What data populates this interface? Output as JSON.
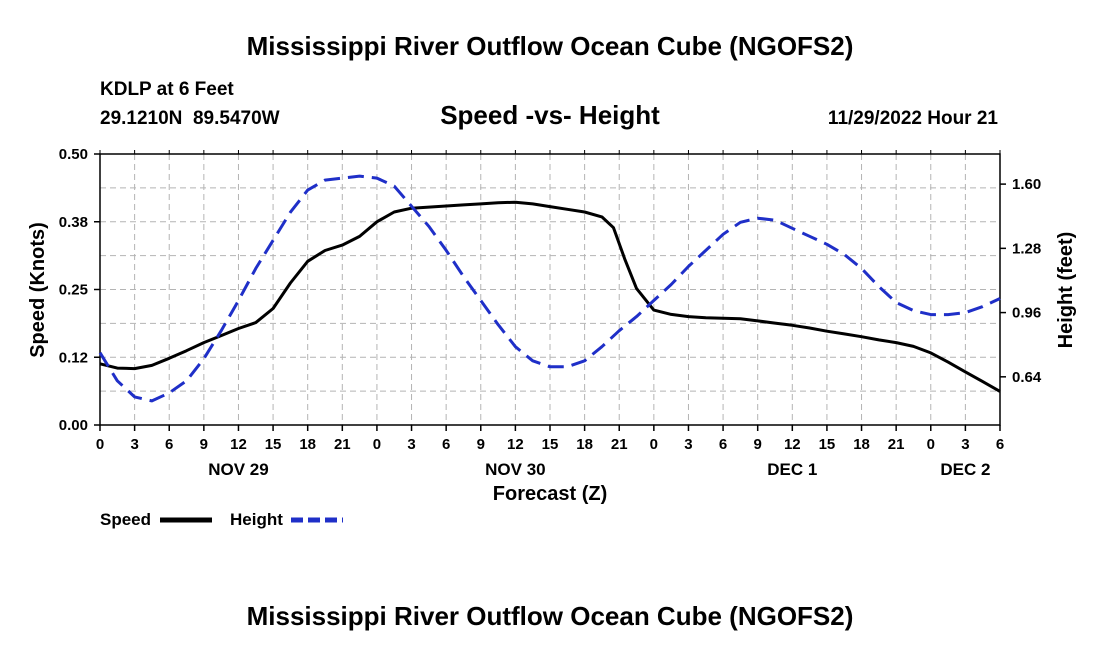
{
  "header": {
    "title": "Mississippi River Outflow Ocean Cube (NGOFS2)",
    "station_line": "KDLP at 6 Feet",
    "coords": "29.1210N  89.5470W",
    "subtitle": "Speed -vs- Height",
    "datetime": "11/29/2022 Hour 21"
  },
  "footer": {
    "title": "Mississippi River Outflow Ocean Cube (NGOFS2)"
  },
  "colors": {
    "speed": "#000000",
    "height": "#1f2fc8",
    "grid": "#b4b4b4"
  },
  "chart_data": {
    "type": "line",
    "title": "Speed -vs- Height",
    "xlabel": "Forecast (Z)",
    "ylabel": "Speed (Knots)",
    "y2label": "Height (feet)",
    "x_unit": "hours from Nov 29 00Z",
    "xlim": [
      0,
      78
    ],
    "ylim": [
      0,
      0.5
    ],
    "y2lim": [
      0.4,
      1.75
    ],
    "yticks": [
      {
        "value": 0.0,
        "label": "0.00"
      },
      {
        "value": 0.125,
        "label": "0.12"
      },
      {
        "value": 0.25,
        "label": "0.25"
      },
      {
        "value": 0.375,
        "label": "0.38"
      },
      {
        "value": 0.5,
        "label": "0.50"
      }
    ],
    "y2ticks": [
      {
        "value": 0.64,
        "label": "0.64"
      },
      {
        "value": 0.96,
        "label": "0.96"
      },
      {
        "value": 1.28,
        "label": "1.28"
      },
      {
        "value": 1.6,
        "label": "1.60"
      }
    ],
    "xticks": [
      {
        "value": 0,
        "label": "0"
      },
      {
        "value": 3,
        "label": "3"
      },
      {
        "value": 6,
        "label": "6"
      },
      {
        "value": 9,
        "label": "9"
      },
      {
        "value": 12,
        "label": "12"
      },
      {
        "value": 15,
        "label": "15"
      },
      {
        "value": 18,
        "label": "18"
      },
      {
        "value": 21,
        "label": "21"
      },
      {
        "value": 24,
        "label": "0"
      },
      {
        "value": 27,
        "label": "3"
      },
      {
        "value": 30,
        "label": "6"
      },
      {
        "value": 33,
        "label": "9"
      },
      {
        "value": 36,
        "label": "12"
      },
      {
        "value": 39,
        "label": "15"
      },
      {
        "value": 42,
        "label": "18"
      },
      {
        "value": 45,
        "label": "21"
      },
      {
        "value": 48,
        "label": "0"
      },
      {
        "value": 51,
        "label": "3"
      },
      {
        "value": 54,
        "label": "6"
      },
      {
        "value": 57,
        "label": "9"
      },
      {
        "value": 60,
        "label": "12"
      },
      {
        "value": 63,
        "label": "15"
      },
      {
        "value": 66,
        "label": "18"
      },
      {
        "value": 69,
        "label": "21"
      },
      {
        "value": 72,
        "label": "0"
      },
      {
        "value": 75,
        "label": "3"
      },
      {
        "value": 78,
        "label": "6"
      }
    ],
    "day_labels": [
      {
        "value": 12,
        "label": "NOV 29"
      },
      {
        "value": 36,
        "label": "NOV 30"
      },
      {
        "value": 60,
        "label": "DEC 1"
      },
      {
        "value": 75,
        "label": "DEC 2"
      }
    ],
    "series": [
      {
        "name": "Speed",
        "axis": "left",
        "style": "solid",
        "x": [
          0,
          1.5,
          3,
          4.5,
          6,
          7.5,
          9,
          10.5,
          12,
          13.5,
          15,
          16.5,
          18,
          19.5,
          21,
          22.5,
          24,
          25.5,
          27,
          28.5,
          30,
          31.5,
          33,
          34.5,
          36,
          37.5,
          39,
          40.5,
          42,
          43.5,
          44.5,
          45.5,
          46.5,
          48,
          49.5,
          51,
          52.5,
          54,
          55.5,
          57,
          58.5,
          60,
          61.5,
          63,
          64.5,
          66,
          67.5,
          69,
          70.5,
          72,
          73.5,
          75,
          76.5,
          78
        ],
        "values": [
          0.113,
          0.105,
          0.104,
          0.11,
          0.123,
          0.137,
          0.152,
          0.165,
          0.178,
          0.189,
          0.215,
          0.262,
          0.302,
          0.322,
          0.332,
          0.348,
          0.375,
          0.393,
          0.4,
          0.402,
          0.404,
          0.406,
          0.408,
          0.41,
          0.411,
          0.408,
          0.403,
          0.398,
          0.393,
          0.384,
          0.364,
          0.305,
          0.252,
          0.212,
          0.204,
          0.2,
          0.198,
          0.197,
          0.196,
          0.192,
          0.188,
          0.184,
          0.179,
          0.173,
          0.168,
          0.163,
          0.157,
          0.152,
          0.145,
          0.133,
          0.116,
          0.098,
          0.08,
          0.062
        ]
      },
      {
        "name": "Height",
        "axis": "right",
        "style": "dashed",
        "x": [
          0,
          1.5,
          3,
          4.5,
          6,
          7.5,
          9,
          10.5,
          12,
          13.5,
          15,
          16.5,
          18,
          19.5,
          21,
          22.5,
          24,
          25.5,
          27,
          28.5,
          30,
          31.5,
          33,
          34.5,
          36,
          37.5,
          39,
          40.5,
          42,
          43.5,
          45,
          46.5,
          48,
          49.5,
          51,
          52.5,
          54,
          55.5,
          57,
          58.5,
          60,
          61.5,
          63,
          64.5,
          66,
          67.5,
          69,
          70.5,
          72,
          73.5,
          75,
          76.5,
          78
        ],
        "values": [
          0.76,
          0.62,
          0.54,
          0.52,
          0.56,
          0.62,
          0.73,
          0.87,
          1.02,
          1.18,
          1.32,
          1.46,
          1.57,
          1.62,
          1.63,
          1.64,
          1.63,
          1.59,
          1.49,
          1.39,
          1.27,
          1.14,
          1.02,
          0.9,
          0.79,
          0.72,
          0.69,
          0.69,
          0.72,
          0.79,
          0.87,
          0.94,
          1.02,
          1.1,
          1.19,
          1.27,
          1.35,
          1.41,
          1.43,
          1.42,
          1.38,
          1.34,
          1.3,
          1.25,
          1.18,
          1.09,
          1.01,
          0.97,
          0.95,
          0.95,
          0.96,
          0.99,
          1.03
        ]
      }
    ],
    "legend": {
      "position": "bottom-left",
      "entries": [
        {
          "label": "Speed",
          "style": "solid"
        },
        {
          "label": "Height",
          "style": "dashed"
        }
      ]
    }
  }
}
